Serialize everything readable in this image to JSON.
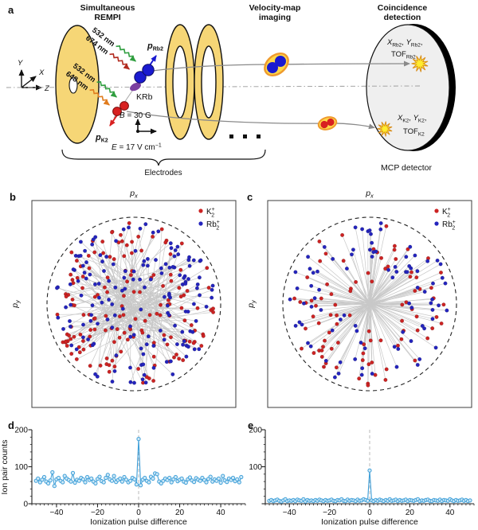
{
  "panel_a": {
    "label": "a",
    "title_rempi_l1": "Simultaneous",
    "title_rempi_l2": "REMPI",
    "title_vmi_l1": "Velocity-map",
    "title_vmi_l2": "imaging",
    "title_coinc_l1": "Coincidence",
    "title_coinc_l2": "detection",
    "axis_triad": {
      "x": "X",
      "y": "Y",
      "z": "Z"
    },
    "lasers": [
      {
        "text": "532 nm",
        "color": "#2f9e3f"
      },
      {
        "text": "674 nm",
        "color": "#b22a1f"
      },
      {
        "text": "532 nm",
        "color": "#2f9e3f"
      },
      {
        "text": "648 nm",
        "color": "#e07c1e"
      }
    ],
    "krb_label": "KRb",
    "krb_color": "#7b3fa0",
    "p_rb2": {
      "base": "p",
      "sub": "Rb2",
      "color": "#1a1ad0"
    },
    "p_k2": {
      "base": "p",
      "sub": "K2",
      "color": "#d82020"
    },
    "b_field": {
      "var": "B",
      "rest": " = 30 G"
    },
    "e_field": {
      "var": "E",
      "rest": " = 17 V cm",
      "sup": "−1"
    },
    "electrodes_label": "Electrodes",
    "mcp_label": "MCP detector",
    "electrode_color": "#f6d676",
    "detector_blue": {
      "color": "#2a2ab8",
      "sym1": "X",
      "sym2": "Y",
      "sub": "Rb2",
      "sep": ", ",
      "tail": ",",
      "tof": "TOF"
    },
    "detector_red": {
      "color": "#d82020",
      "sym1": "X",
      "sym2": "Y",
      "sub": "K2",
      "sep": ", ",
      "tail": ",",
      "tof": "TOF"
    }
  },
  "panel_b": {
    "label": "b",
    "x_axis": {
      "base": "p",
      "sub": "x"
    },
    "y_axis": {
      "base": "p",
      "sub": "y"
    },
    "legend": [
      {
        "base": "K",
        "sub": "2",
        "sup": "+",
        "color": "#cc2323"
      },
      {
        "base": "Rb",
        "sub": "2",
        "sup": "+",
        "color": "#2424bd"
      }
    ]
  },
  "panel_c": {
    "label": "c",
    "x_axis": {
      "base": "p",
      "sub": "x"
    },
    "y_axis": {
      "base": "p",
      "sub": "y"
    },
    "legend": [
      {
        "base": "K",
        "sub": "2",
        "sup": "+",
        "color": "#cc2323"
      },
      {
        "base": "Rb",
        "sub": "2",
        "sup": "+",
        "color": "#2424bd"
      }
    ]
  },
  "panel_d": {
    "label": "d",
    "ylabel": "Ion pair counts",
    "xlabel": "Ionization pulse difference"
  },
  "panel_e": {
    "label": "e",
    "xlabel": "Ionization pulse difference"
  },
  "chart_data": [
    {
      "panel": "b",
      "type": "scatter",
      "description": "Momentum-space (px, py) positions of detected K2+ (red) and Rb2+ (blue) ions; gray lines connect ion pairs; dashed circle marks the maximum momentum radius; axes unlabeled (arbitrary momentum units).",
      "xlabel": "px",
      "ylabel": "py",
      "legend": [
        "K2+",
        "Rb2+"
      ],
      "colors": {
        "K2+": "#cc2323",
        "Rb2+": "#2424bd"
      },
      "dashed_circle": true,
      "generation": {
        "seed": 11,
        "n_pairs": 160,
        "angle_jitter_rad": 0.9,
        "r_min": 0.08,
        "r_max": 0.97
      }
    },
    {
      "panel": "c",
      "type": "scatter",
      "description": "Same as b but momentum-correlated coincidence pairs: connecting lines pass through the centre (momentum conservation).",
      "xlabel": "px",
      "ylabel": "py",
      "legend": [
        "K2+",
        "Rb2+"
      ],
      "colors": {
        "K2+": "#cc2323",
        "Rb2+": "#2424bd"
      },
      "dashed_circle": true,
      "generation": {
        "seed": 5,
        "n_pairs": 88,
        "angle_jitter_rad": 0.05,
        "r_min": 0.22,
        "r_max": 0.97
      }
    },
    {
      "panel": "d",
      "type": "line",
      "xlabel": "Ionization pulse difference",
      "ylabel": "Ion pair counts",
      "xlim": [
        -52,
        52
      ],
      "ylim": [
        0,
        200
      ],
      "xticks": [
        -40,
        -20,
        0,
        20,
        40
      ],
      "yticks": [
        0,
        100,
        200
      ],
      "vline_x": 0,
      "peak": {
        "x": 0,
        "y": 175
      },
      "line_color": "#3f9fd8",
      "marker_fill": "#cfe9f7",
      "x_start": -50,
      "x_step": 1,
      "values": [
        62,
        68,
        58,
        65,
        72,
        60,
        55,
        63,
        85,
        48,
        66,
        70,
        62,
        58,
        75,
        68,
        64,
        60,
        83,
        57,
        65,
        62,
        70,
        66,
        58,
        72,
        64,
        68,
        60,
        55,
        67,
        73,
        61,
        58,
        70,
        78,
        66,
        62,
        75,
        59,
        64,
        68,
        60,
        72,
        65,
        58,
        62,
        70,
        66,
        52,
        175,
        50,
        65,
        70,
        62,
        58,
        73,
        68,
        82,
        80,
        60,
        55,
        62,
        68,
        64,
        70,
        58,
        66,
        72,
        61,
        65,
        68,
        60,
        57,
        66,
        71,
        63,
        59,
        69,
        65,
        62,
        70,
        64,
        58,
        67,
        73,
        60,
        66,
        62,
        68,
        57,
        75,
        63,
        59,
        68,
        64,
        70,
        61,
        66,
        58,
        72
      ]
    },
    {
      "panel": "e",
      "type": "line",
      "xlabel": "Ionization pulse difference",
      "ylabel": "",
      "xlim": [
        -52,
        52
      ],
      "ylim": [
        0,
        200
      ],
      "xticks": [
        -40,
        -20,
        0,
        20,
        40
      ],
      "yticks": [
        100,
        200
      ],
      "vline_x": 0,
      "peak": {
        "x": 0,
        "y": 90
      },
      "line_color": "#3f9fd8",
      "marker_fill": "#cfe9f7",
      "x_start": -50,
      "x_step": 1,
      "values": [
        8,
        10,
        7,
        9,
        11,
        8,
        6,
        9,
        12,
        7,
        9,
        8,
        10,
        7,
        11,
        9,
        8,
        12,
        6,
        10,
        8,
        9,
        7,
        10,
        8,
        11,
        9,
        7,
        10,
        8,
        9,
        11,
        8,
        7,
        10,
        9,
        12,
        8,
        7,
        11,
        8,
        10,
        9,
        7,
        11,
        8,
        9,
        12,
        10,
        8,
        90,
        9,
        7,
        10,
        8,
        11,
        9,
        7,
        10,
        8,
        12,
        8,
        9,
        11,
        7,
        10,
        8,
        9,
        11,
        7,
        10,
        9,
        8,
        10,
        12,
        7,
        9,
        8,
        10,
        11,
        8,
        7,
        10,
        9,
        8,
        11,
        7,
        10,
        9,
        8,
        12,
        9,
        7,
        10,
        8,
        9,
        11,
        8,
        10,
        7,
        9
      ]
    }
  ]
}
